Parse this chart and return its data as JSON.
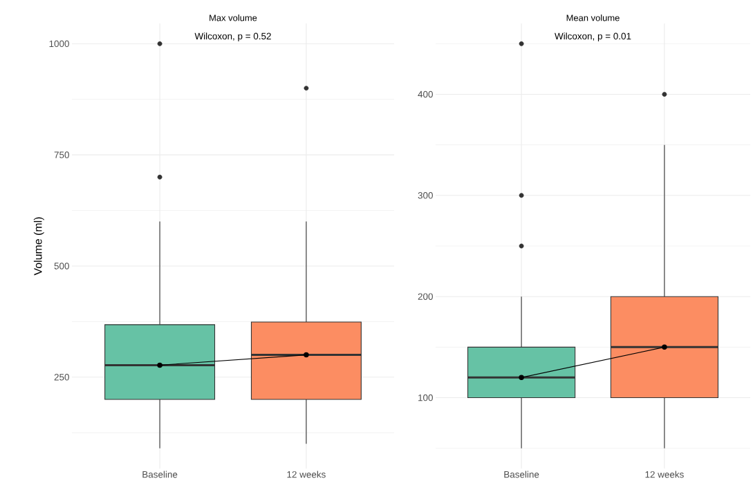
{
  "chart_data": [
    {
      "type": "box",
      "title": "Max volume",
      "ylabel": "Volume (ml)",
      "categories": [
        "Baseline",
        "12 weeks"
      ],
      "colors": [
        "#66c2a5",
        "#fc8d62"
      ],
      "boxes": [
        {
          "low": 90,
          "q1": 200,
          "median": 277,
          "q3": 368,
          "high": 600,
          "outliers": [
            700,
            1000
          ]
        },
        {
          "low": 100,
          "q1": 200,
          "median": 300,
          "q3": 374,
          "high": 600,
          "outliers": [
            900
          ]
        }
      ],
      "series": [
        {
          "type": "line",
          "color": "#000000",
          "marker": "circle",
          "values": [
            277,
            300
          ]
        }
      ],
      "ylim": [
        44.5,
        1045.5
      ],
      "yticks": [
        250,
        500,
        750,
        1000
      ],
      "grid": true,
      "annotations": [
        "Wilcoxon, p = 0.52"
      ]
    },
    {
      "type": "box",
      "title": "Mean volume",
      "categories": [
        "Baseline",
        "12 weeks"
      ],
      "colors": [
        "#66c2a5",
        "#fc8d62"
      ],
      "boxes": [
        {
          "low": 50,
          "q1": 100,
          "median": 120,
          "q3": 150,
          "high": 200,
          "outliers": [
            250,
            300,
            450
          ]
        },
        {
          "low": 50,
          "q1": 100,
          "median": 150,
          "q3": 200,
          "high": 350,
          "outliers": [
            400
          ]
        }
      ],
      "series": [
        {
          "type": "line",
          "color": "#000000",
          "marker": "circle",
          "values": [
            120,
            150
          ]
        }
      ],
      "ylim": [
        30,
        470
      ],
      "yticks": [
        100,
        200,
        300,
        400
      ],
      "grid": true,
      "annotations": [
        "Wilcoxon, p = 0.01"
      ]
    }
  ]
}
